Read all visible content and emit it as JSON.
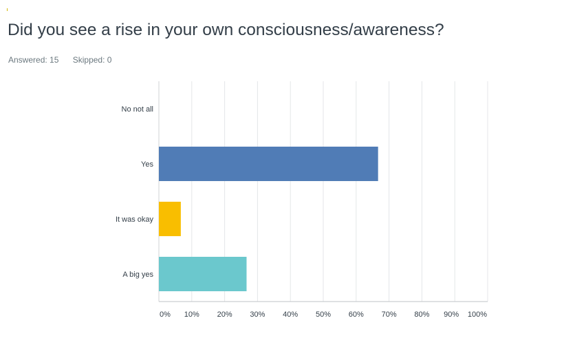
{
  "question": {
    "title": "Did you see a rise in your own consciousness/awareness?",
    "answered_label": "Answered: 15",
    "skipped_label": "Skipped: 0"
  },
  "chart_data": {
    "type": "bar",
    "orientation": "horizontal",
    "categories": [
      "No not all",
      "Yes",
      "It was okay",
      "A big yes"
    ],
    "values": [
      0,
      66.67,
      6.67,
      26.67
    ],
    "colors": [
      "#507cb6",
      "#507cb6",
      "#f9be00",
      "#6bc8cd"
    ],
    "xticks": [
      "0%",
      "10%",
      "20%",
      "30%",
      "40%",
      "50%",
      "60%",
      "70%",
      "80%",
      "90%",
      "100%"
    ],
    "xlim": [
      0,
      100
    ],
    "grid": true,
    "legend": "none",
    "title": "",
    "xlabel": "",
    "ylabel": ""
  }
}
